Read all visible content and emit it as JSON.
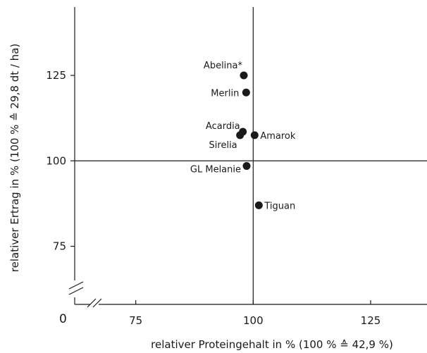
{
  "chart_data": {
    "type": "scatter",
    "xlabel": "relativer Proteingehalt in % (100 % ≙ 42,9 %)",
    "ylabel": "relativer Ertrag in % (100 % ≙  29,8 dt / ha)",
    "origin_label": "0",
    "xlim": [
      62,
      137
    ],
    "ylim": [
      58,
      145
    ],
    "x_ticks": [
      75,
      100,
      125
    ],
    "y_ticks": [
      75,
      100,
      125
    ],
    "reference_lines": {
      "x": 100,
      "y": 100
    },
    "axis_break": true,
    "grid": false,
    "points": [
      {
        "label": "Abelina*",
        "x": 98,
        "y": 125
      },
      {
        "label": "Merlin",
        "x": 98.5,
        "y": 120
      },
      {
        "label": "Acardia",
        "x": 97.8,
        "y": 108.5
      },
      {
        "label": "Sirelia",
        "x": 97.2,
        "y": 107.5
      },
      {
        "label": "Amarok",
        "x": 100.3,
        "y": 107.5
      },
      {
        "label": "GL Melanie",
        "x": 98.6,
        "y": 98.5
      },
      {
        "label": "Tiguan",
        "x": 101.2,
        "y": 87
      }
    ]
  }
}
